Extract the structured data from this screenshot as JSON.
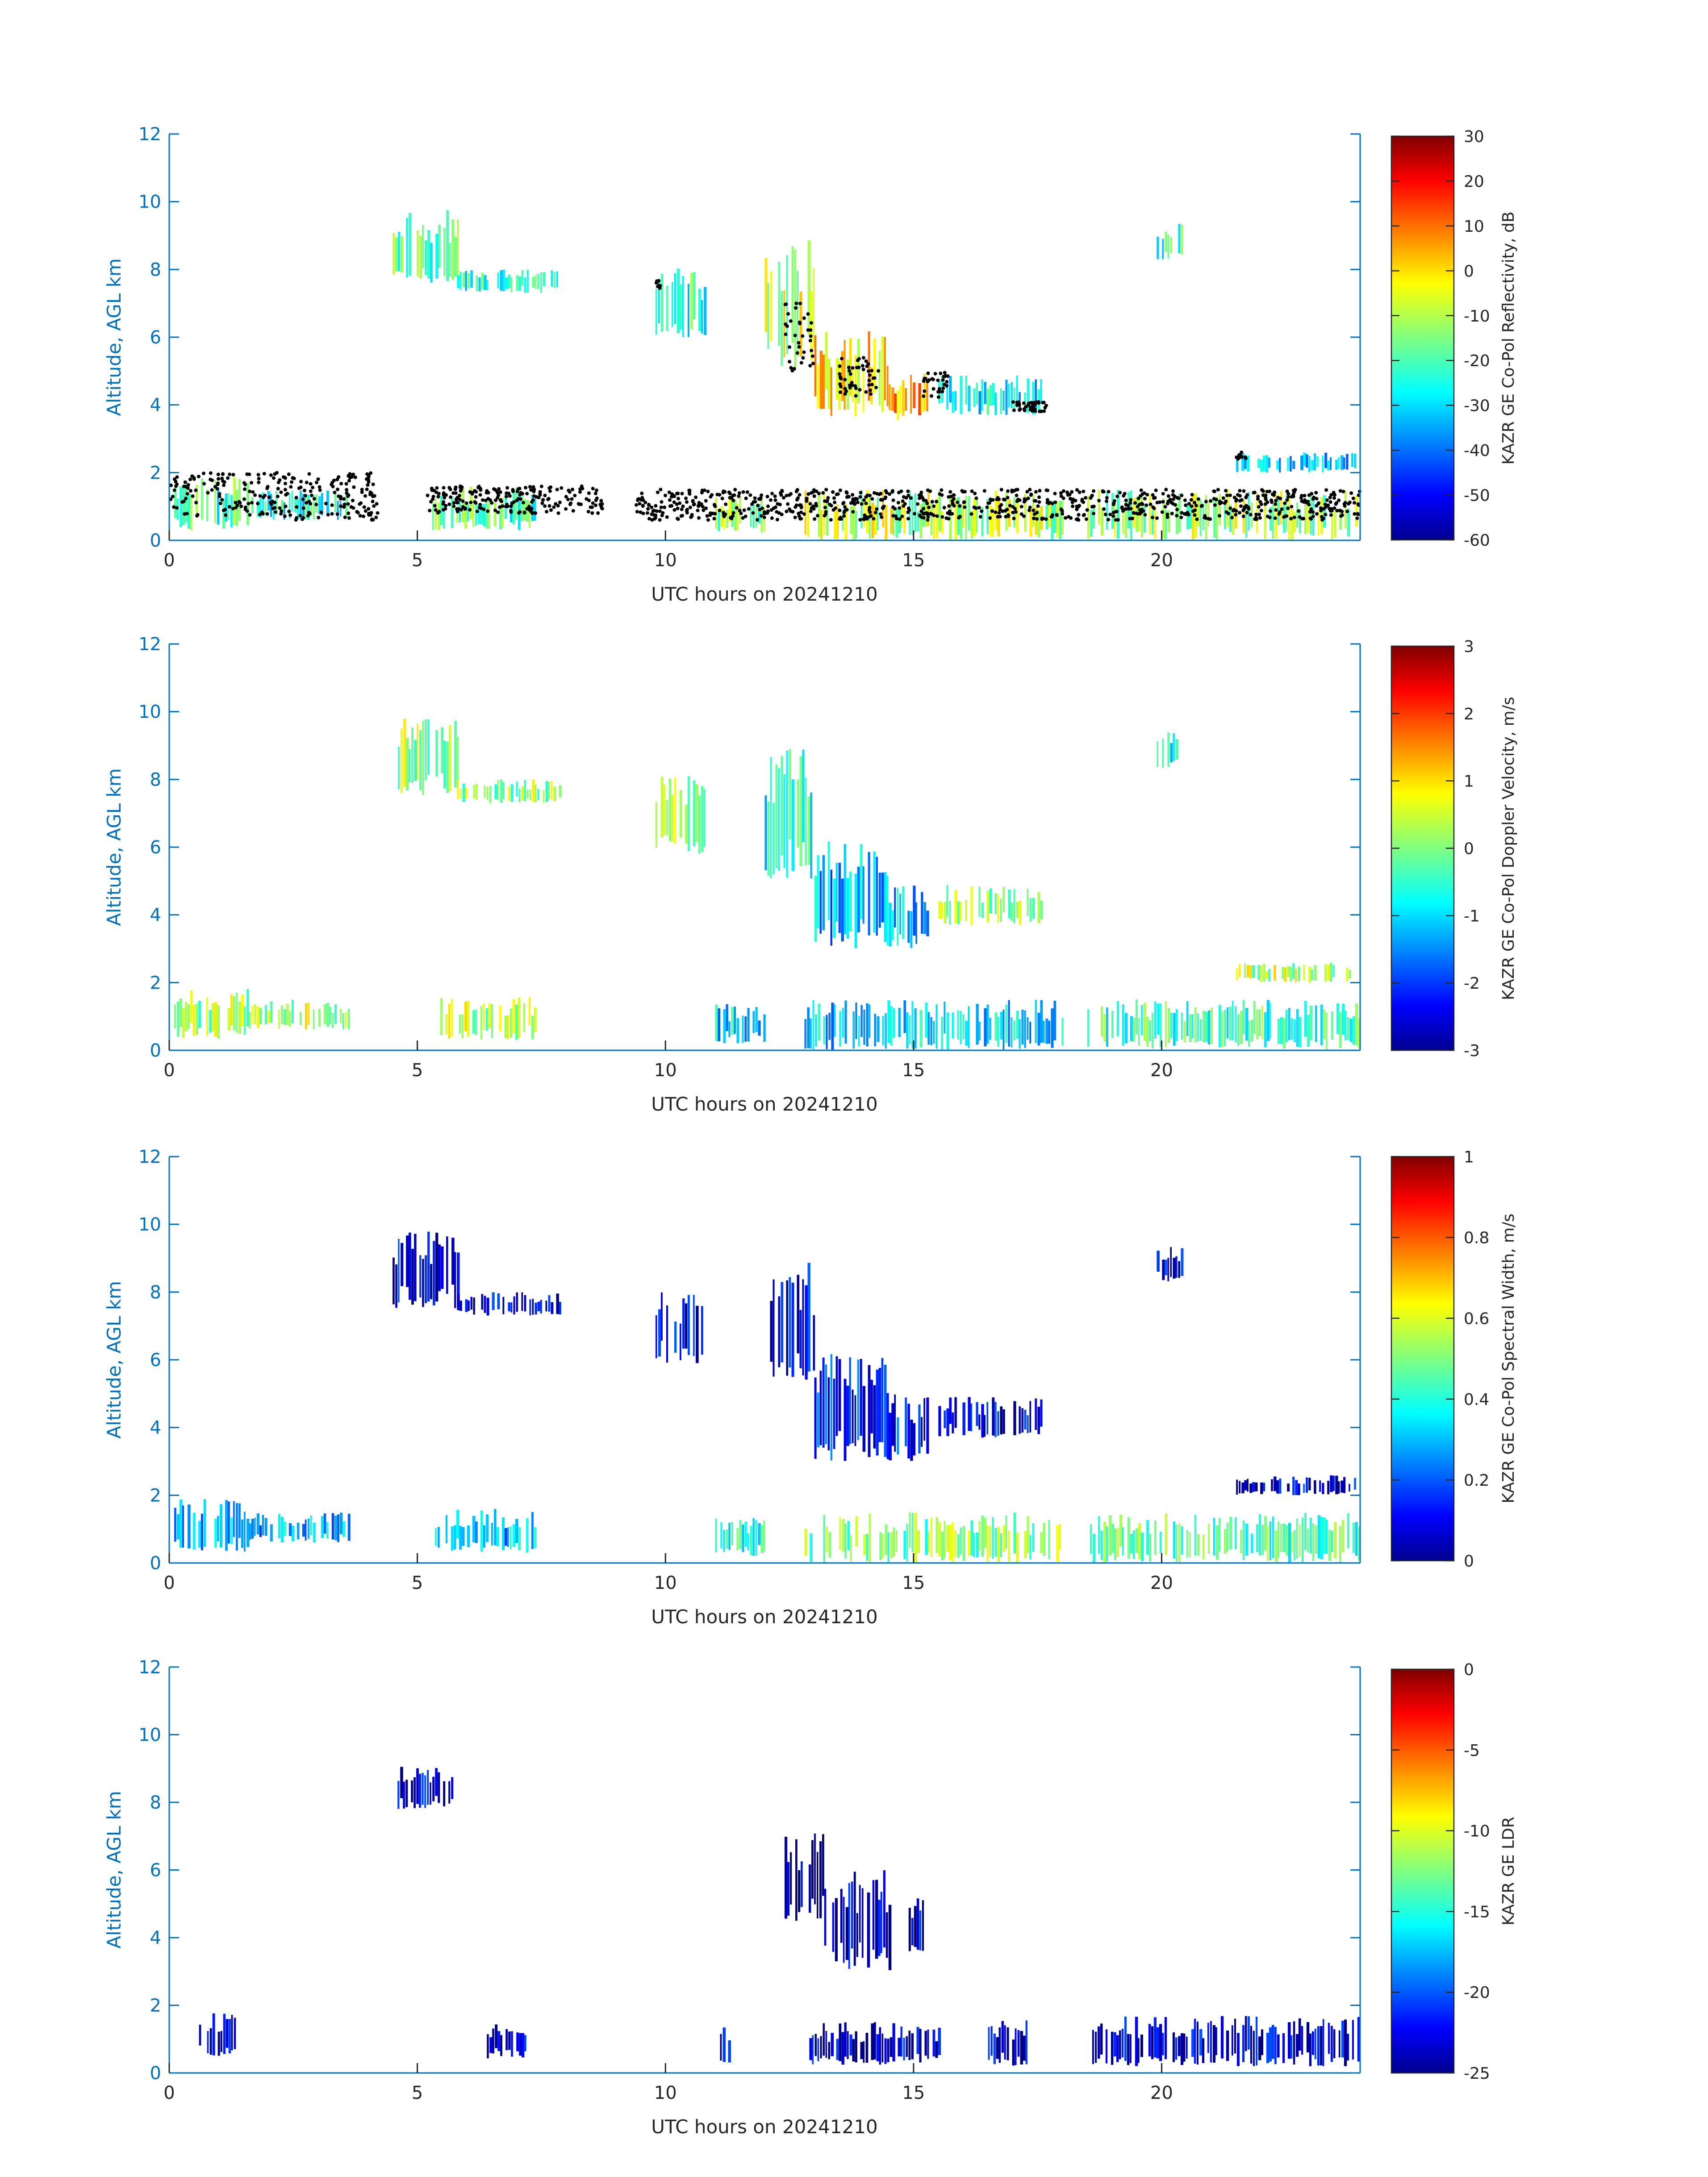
{
  "colormap": "jet",
  "colors": {
    "axis_y": "#0072bd",
    "axis_x": "#262626",
    "precip_markers": "#000000"
  },
  "panels": [
    {
      "id": "reflectivity",
      "xlabel": "UTC hours on 20241210",
      "ylabel": "Altitude, AGL km",
      "colorbar_label": "KAZR GE Co-Pol Reflectivity, dB",
      "colorbar_range": [
        -60,
        30
      ],
      "colorbar_ticks": [
        "30",
        "20",
        "10",
        "0",
        "-10",
        "-20",
        "-30",
        "-40",
        "-50",
        "-60"
      ],
      "xticks": [
        "0",
        "5",
        "10",
        "15",
        "20"
      ],
      "yticks": [
        "12",
        "10",
        "8",
        "6",
        "4",
        "2",
        "0"
      ]
    },
    {
      "id": "doppler-velocity",
      "xlabel": "UTC hours on 20241210",
      "ylabel": "Altitude, AGL km",
      "colorbar_label": "KAZR GE Co-Pol Doppler Velocity, m/s",
      "colorbar_range": [
        -3,
        3
      ],
      "colorbar_ticks": [
        "3",
        "2",
        "1",
        "0",
        "-1",
        "-2",
        "-3"
      ],
      "xticks": [
        "0",
        "5",
        "10",
        "15",
        "20"
      ],
      "yticks": [
        "12",
        "10",
        "8",
        "6",
        "4",
        "2",
        "0"
      ]
    },
    {
      "id": "spectral-width",
      "xlabel": "UTC hours on 20241210",
      "ylabel": "Altitude, AGL km",
      "colorbar_label": "KAZR GE Co-Pol Spectral Width, m/s",
      "colorbar_range": [
        0,
        1
      ],
      "colorbar_ticks": [
        "1",
        "0.8",
        "0.6",
        "0.4",
        "0.2",
        "0"
      ],
      "xticks": [
        "0",
        "5",
        "10",
        "15",
        "20"
      ],
      "yticks": [
        "12",
        "10",
        "8",
        "6",
        "4",
        "2",
        "0"
      ]
    },
    {
      "id": "ldr",
      "xlabel": "UTC hours on 20241210",
      "ylabel": "Altitude, AGL km",
      "colorbar_label": "KAZR GE LDR",
      "colorbar_range": [
        -25,
        0
      ],
      "colorbar_ticks": [
        "0",
        "-5",
        "-10",
        "-15",
        "-20",
        "-25"
      ],
      "xticks": [
        "0",
        "5",
        "10",
        "15",
        "20"
      ],
      "yticks": [
        "12",
        "10",
        "8",
        "6",
        "4",
        "2",
        "0"
      ]
    }
  ],
  "chart_data": [
    {
      "type": "heatmap",
      "panel": "reflectivity",
      "variable": "KAZR GE Co-Pol Reflectivity, dB",
      "xlabel": "UTC hours on 20241210",
      "ylabel": "Altitude, AGL km",
      "xlim": [
        0,
        24
      ],
      "ylim": [
        0,
        12
      ],
      "clim": [
        -60,
        30
      ],
      "echo_regions": [
        {
          "t0": 4.5,
          "t1": 5.8,
          "zbot": 7.5,
          "ztop": 9.8,
          "value": -20
        },
        {
          "t0": 5.8,
          "t1": 7.9,
          "zbot": 7.3,
          "ztop": 8.0,
          "value": -22
        },
        {
          "t0": 9.8,
          "t1": 10.8,
          "zbot": 5.8,
          "ztop": 8.1,
          "value": -22
        },
        {
          "t0": 12.0,
          "t1": 13.0,
          "zbot": 5.0,
          "ztop": 9.0,
          "value": -8
        },
        {
          "t0": 13.0,
          "t1": 14.5,
          "zbot": 3.6,
          "ztop": 6.2,
          "value": 0
        },
        {
          "t0": 14.5,
          "t1": 15.3,
          "zbot": 3.5,
          "ztop": 5.0,
          "value": 2
        },
        {
          "t0": 15.5,
          "t1": 17.6,
          "zbot": 3.7,
          "ztop": 4.9,
          "value": -28
        },
        {
          "t0": 19.9,
          "t1": 20.4,
          "zbot": 8.3,
          "ztop": 9.4,
          "value": -22
        },
        {
          "t0": 21.5,
          "t1": 23.9,
          "zbot": 2.0,
          "ztop": 2.6,
          "value": -30
        },
        {
          "t0": 0.1,
          "t1": 1.6,
          "zbot": 0.3,
          "ztop": 1.9,
          "value": -20
        },
        {
          "t0": 1.6,
          "t1": 3.6,
          "zbot": 0.6,
          "ztop": 1.5,
          "value": -25
        },
        {
          "t0": 5.3,
          "t1": 7.4,
          "zbot": 0.3,
          "ztop": 1.6,
          "value": -20
        },
        {
          "t0": 11.0,
          "t1": 12.0,
          "zbot": 0.2,
          "ztop": 1.4,
          "value": -15
        },
        {
          "t0": 12.8,
          "t1": 18.0,
          "zbot": 0.0,
          "ztop": 1.5,
          "value": -10
        },
        {
          "t0": 18.5,
          "t1": 24.0,
          "zbot": 0.0,
          "ztop": 1.5,
          "value": -12
        }
      ],
      "marker_overlay": {
        "color": "#000000",
        "description": "cloud base points",
        "segments": [
          {
            "t0": 0.0,
            "t1": 4.2,
            "z0": 0.6,
            "z1": 2.0
          },
          {
            "t0": 5.2,
            "t1": 8.8,
            "z0": 0.8,
            "z1": 1.6
          },
          {
            "t0": 9.4,
            "t1": 24.0,
            "z0": 0.6,
            "z1": 1.5
          },
          {
            "t0": 12.4,
            "t1": 13.0,
            "z0": 5.0,
            "z1": 7.0
          },
          {
            "t0": 13.5,
            "t1": 14.3,
            "z0": 4.2,
            "z1": 5.4
          },
          {
            "t0": 17.0,
            "t1": 17.7,
            "z0": 3.8,
            "z1": 4.1
          },
          {
            "t0": 15.2,
            "t1": 15.7,
            "z0": 4.2,
            "z1": 5.0
          },
          {
            "t0": 21.5,
            "t1": 21.7,
            "z0": 2.4,
            "z1": 2.6
          },
          {
            "t0": 9.8,
            "t1": 9.9,
            "z0": 7.4,
            "z1": 7.7
          }
        ]
      }
    },
    {
      "type": "heatmap",
      "panel": "doppler-velocity",
      "variable": "KAZR GE Co-Pol Doppler Velocity, m/s",
      "xlabel": "UTC hours on 20241210",
      "ylabel": "Altitude, AGL km",
      "xlim": [
        0,
        24
      ],
      "ylim": [
        0,
        12
      ],
      "clim": [
        -3,
        3
      ],
      "echo_regions": [
        {
          "t0": 4.5,
          "t1": 5.8,
          "zbot": 7.5,
          "ztop": 9.8,
          "value": 0.1
        },
        {
          "t0": 5.8,
          "t1": 7.9,
          "zbot": 7.3,
          "ztop": 8.0,
          "value": 0.1
        },
        {
          "t0": 9.8,
          "t1": 10.8,
          "zbot": 5.8,
          "ztop": 8.1,
          "value": 0.1
        },
        {
          "t0": 12.0,
          "t1": 13.0,
          "zbot": 5.0,
          "ztop": 9.0,
          "value": -0.6
        },
        {
          "t0": 13.0,
          "t1": 14.5,
          "zbot": 3.0,
          "ztop": 6.2,
          "value": -1.2
        },
        {
          "t0": 14.5,
          "t1": 15.3,
          "zbot": 3.0,
          "ztop": 5.0,
          "value": -1.2
        },
        {
          "t0": 15.5,
          "t1": 17.6,
          "zbot": 3.7,
          "ztop": 4.9,
          "value": 0.2
        },
        {
          "t0": 19.9,
          "t1": 20.4,
          "zbot": 8.3,
          "ztop": 9.4,
          "value": -0.8
        },
        {
          "t0": 21.5,
          "t1": 23.9,
          "zbot": 2.0,
          "ztop": 2.6,
          "value": 0.3
        },
        {
          "t0": 0.1,
          "t1": 1.6,
          "zbot": 0.3,
          "ztop": 1.9,
          "value": 0.2
        },
        {
          "t0": 1.6,
          "t1": 3.6,
          "zbot": 0.6,
          "ztop": 1.5,
          "value": 0.3
        },
        {
          "t0": 5.3,
          "t1": 7.4,
          "zbot": 0.3,
          "ztop": 1.6,
          "value": 0.3
        },
        {
          "t0": 11.0,
          "t1": 12.0,
          "zbot": 0.2,
          "ztop": 1.4,
          "value": -1.0
        },
        {
          "t0": 12.8,
          "t1": 18.0,
          "zbot": 0.0,
          "ztop": 1.5,
          "value": -1.0
        },
        {
          "t0": 18.5,
          "t1": 24.0,
          "zbot": 0.0,
          "ztop": 1.5,
          "value": -0.3
        }
      ]
    },
    {
      "type": "heatmap",
      "panel": "spectral-width",
      "variable": "KAZR GE Co-Pol Spectral Width, m/s",
      "xlabel": "UTC hours on 20241210",
      "ylabel": "Altitude, AGL km",
      "xlim": [
        0,
        24
      ],
      "ylim": [
        0,
        12
      ],
      "clim": [
        0,
        1
      ],
      "echo_regions": [
        {
          "t0": 4.5,
          "t1": 5.8,
          "zbot": 7.5,
          "ztop": 9.8,
          "value": 0.1
        },
        {
          "t0": 5.8,
          "t1": 7.9,
          "zbot": 7.3,
          "ztop": 8.0,
          "value": 0.1
        },
        {
          "t0": 9.8,
          "t1": 10.8,
          "zbot": 5.8,
          "ztop": 8.1,
          "value": 0.1
        },
        {
          "t0": 12.0,
          "t1": 13.0,
          "zbot": 5.0,
          "ztop": 9.0,
          "value": 0.1
        },
        {
          "t0": 13.0,
          "t1": 14.5,
          "zbot": 3.0,
          "ztop": 6.2,
          "value": 0.15
        },
        {
          "t0": 14.5,
          "t1": 15.3,
          "zbot": 3.0,
          "ztop": 5.0,
          "value": 0.15
        },
        {
          "t0": 15.5,
          "t1": 17.6,
          "zbot": 3.7,
          "ztop": 4.9,
          "value": 0.1
        },
        {
          "t0": 19.9,
          "t1": 20.4,
          "zbot": 8.3,
          "ztop": 9.4,
          "value": 0.1
        },
        {
          "t0": 21.5,
          "t1": 23.9,
          "zbot": 2.0,
          "ztop": 2.6,
          "value": 0.1
        },
        {
          "t0": 0.1,
          "t1": 1.6,
          "zbot": 0.3,
          "ztop": 1.9,
          "value": 0.3
        },
        {
          "t0": 1.6,
          "t1": 3.6,
          "zbot": 0.6,
          "ztop": 1.5,
          "value": 0.3
        },
        {
          "t0": 5.3,
          "t1": 7.4,
          "zbot": 0.3,
          "ztop": 1.6,
          "value": 0.3
        },
        {
          "t0": 11.0,
          "t1": 12.0,
          "zbot": 0.2,
          "ztop": 1.4,
          "value": 0.4
        },
        {
          "t0": 12.8,
          "t1": 18.0,
          "zbot": 0.0,
          "ztop": 1.5,
          "value": 0.5
        },
        {
          "t0": 18.5,
          "t1": 24.0,
          "zbot": 0.0,
          "ztop": 1.5,
          "value": 0.45
        }
      ]
    },
    {
      "type": "heatmap",
      "panel": "ldr",
      "variable": "KAZR GE LDR",
      "xlabel": "UTC hours on 20241210",
      "ylabel": "Altitude, AGL km",
      "xlim": [
        0,
        24
      ],
      "ylim": [
        0,
        12
      ],
      "clim": [
        -25,
        0
      ],
      "echo_regions": [
        {
          "t0": 4.6,
          "t1": 5.7,
          "zbot": 7.8,
          "ztop": 9.1,
          "value": -23
        },
        {
          "t0": 12.4,
          "t1": 13.2,
          "zbot": 4.5,
          "ztop": 7.2,
          "value": -23
        },
        {
          "t0": 13.2,
          "t1": 14.5,
          "zbot": 3.0,
          "ztop": 6.0,
          "value": -23
        },
        {
          "t0": 14.9,
          "t1": 15.3,
          "zbot": 3.4,
          "ztop": 5.2,
          "value": -23
        },
        {
          "t0": 0.6,
          "t1": 1.4,
          "zbot": 0.5,
          "ztop": 1.8,
          "value": -23
        },
        {
          "t0": 6.4,
          "t1": 7.2,
          "zbot": 0.4,
          "ztop": 1.5,
          "value": -23
        },
        {
          "t0": 11.1,
          "t1": 11.3,
          "zbot": 0.2,
          "ztop": 1.4,
          "value": -23
        },
        {
          "t0": 12.9,
          "t1": 15.5,
          "zbot": 0.2,
          "ztop": 1.5,
          "value": -23
        },
        {
          "t0": 16.5,
          "t1": 17.3,
          "zbot": 0.2,
          "ztop": 1.6,
          "value": -23
        },
        {
          "t0": 18.6,
          "t1": 24.0,
          "zbot": 0.2,
          "ztop": 1.7,
          "value": -23
        }
      ]
    }
  ]
}
